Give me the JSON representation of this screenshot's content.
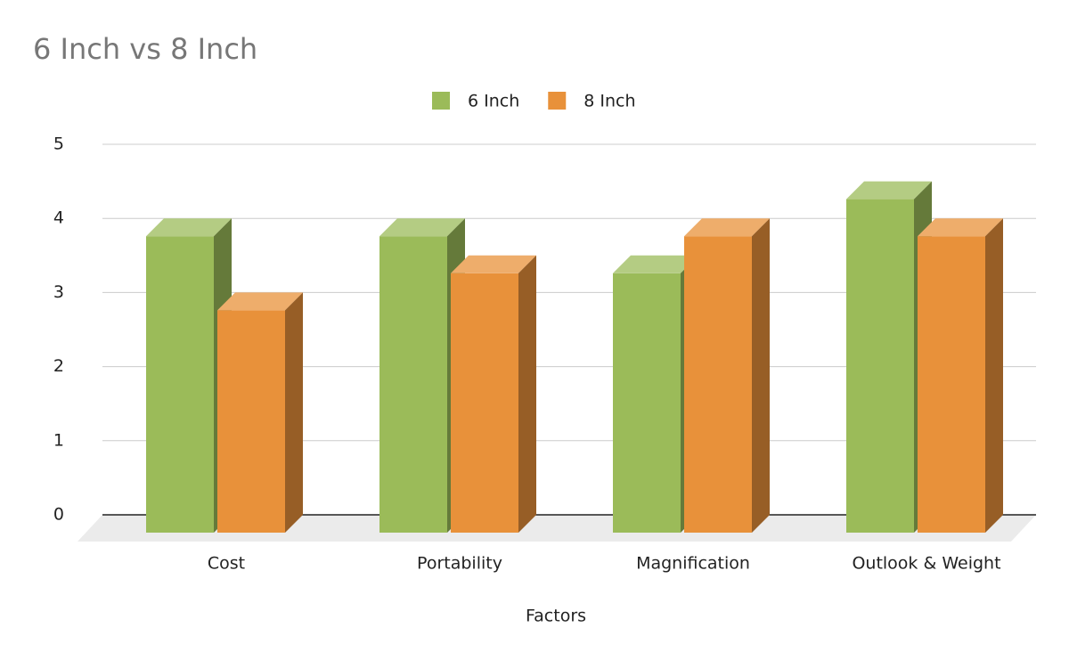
{
  "chart_data": {
    "type": "bar3d",
    "title": "6 Inch vs 8 Inch",
    "x_label": "Factors",
    "categories": [
      "Cost",
      "Portability",
      "Magnification",
      "Outlook & Weight"
    ],
    "series": [
      {
        "name": "6 Inch",
        "color": "#9bbb59",
        "values": [
          4,
          4,
          3.5,
          4.5
        ]
      },
      {
        "name": "8 Inch",
        "color": "#e8913a",
        "values": [
          3,
          3.5,
          4,
          4
        ]
      }
    ],
    "ylim": [
      0,
      5
    ],
    "yticks": [
      0,
      1,
      2,
      3,
      4,
      5
    ],
    "grid": true,
    "legend": "top"
  }
}
